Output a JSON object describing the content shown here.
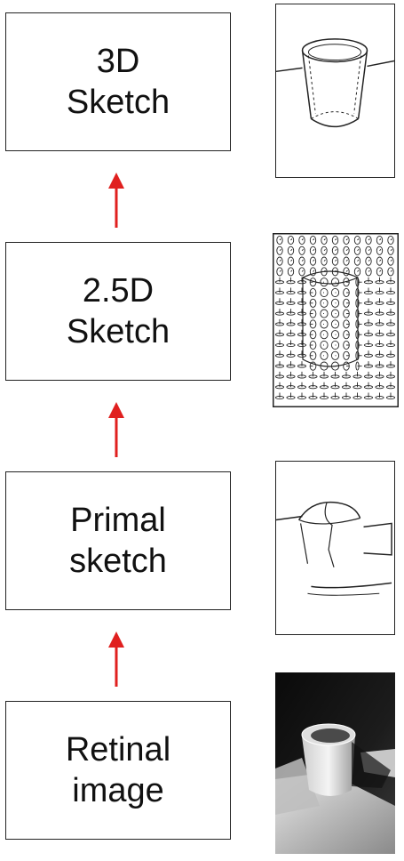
{
  "stages": [
    {
      "id": "3d",
      "line1": "3D",
      "line2": "Sketch",
      "thumbnail": "cup-3d-model-drawing"
    },
    {
      "id": "2_5d",
      "line1": "2.5D",
      "line2": "Sketch",
      "thumbnail": "orientation-needle-map"
    },
    {
      "id": "primal",
      "line1": "Primal",
      "line2": "sketch",
      "thumbnail": "edge-line-drawing"
    },
    {
      "id": "retinal",
      "line1": "Retinal",
      "line2": "image",
      "thumbnail": "photograph-of-cup"
    }
  ],
  "colors": {
    "arrow": "#e0201f",
    "line": "#222222",
    "text": "#111111"
  },
  "arrow_direction": "up"
}
